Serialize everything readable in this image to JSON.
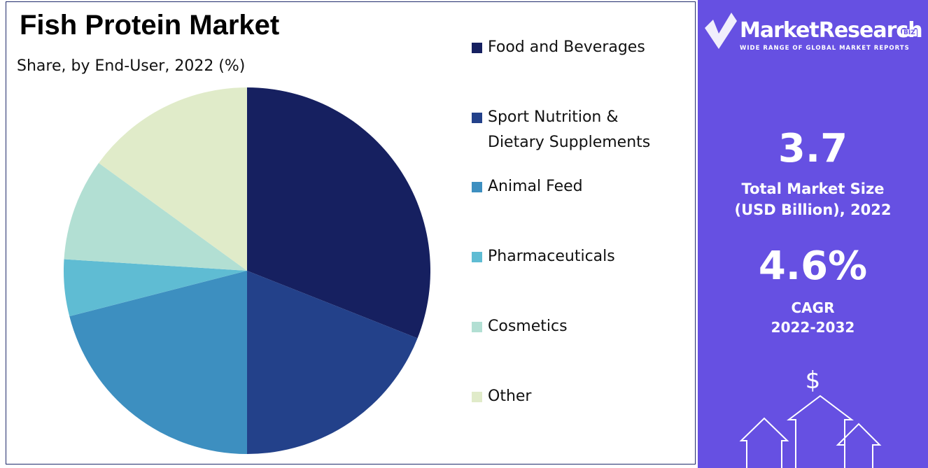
{
  "chart_data": {
    "type": "pie",
    "title": "Fish Protein Market",
    "subtitle": "Share, by End-User, 2022 (%)",
    "categories": [
      "Food and Beverages",
      "Sport Nutrition & Dietary Supplements",
      "Animal Feed",
      "Pharmaceuticals",
      "Cosmetics",
      "Other"
    ],
    "values": [
      31,
      19,
      21,
      5,
      9,
      15
    ],
    "colors": [
      "#162060",
      "#23418a",
      "#3d8fc0",
      "#5fbcd3",
      "#b2dfd3",
      "#e0ebc9"
    ]
  },
  "panel": {
    "brand": "MarketResearch",
    "brand_tag": "BIZ",
    "tagline": "WIDE RANGE OF GLOBAL MARKET REPORTS",
    "market_size": "3.7",
    "market_size_label": [
      "Total Market Size",
      "(USD Billion), 2022"
    ],
    "cagr": "4.6%",
    "cagr_label": [
      "CAGR",
      "2022-2032"
    ],
    "icon_symbol": "$"
  }
}
